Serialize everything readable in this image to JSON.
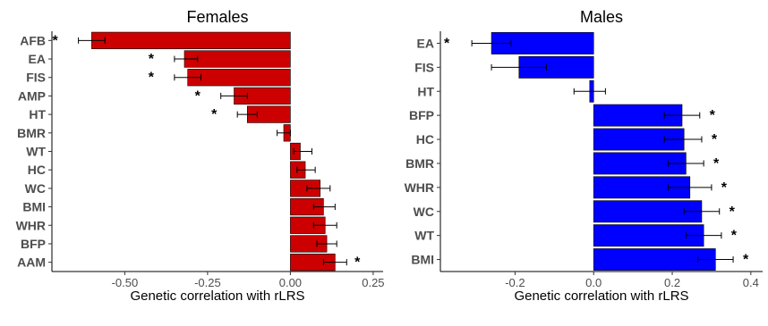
{
  "chart_data": [
    {
      "type": "bar",
      "orientation": "horizontal",
      "title": "Females",
      "xlabel": "Genetic correlation with rLRS",
      "ylabel": "",
      "color": "#cc0000",
      "xlim": [
        -0.72,
        0.28
      ],
      "xticks": [
        -0.5,
        -0.25,
        0.0,
        0.25
      ],
      "xtick_labels": [
        "-0.50",
        "-0.25",
        "0.00",
        "0.25"
      ],
      "categories": [
        "AFB",
        "EA",
        "FIS",
        "AMP",
        "HT",
        "BMR",
        "WT",
        "HC",
        "WC",
        "BMI",
        "WHR",
        "BFP",
        "AAM"
      ],
      "values": [
        -0.6,
        -0.32,
        -0.31,
        -0.17,
        -0.13,
        -0.02,
        0.03,
        0.045,
        0.09,
        0.1,
        0.105,
        0.11,
        0.135
      ],
      "err_low": [
        -0.64,
        -0.35,
        -0.35,
        -0.21,
        -0.16,
        -0.04,
        0.01,
        0.02,
        0.05,
        0.07,
        0.07,
        0.08,
        0.1
      ],
      "err_high": [
        -0.56,
        -0.28,
        -0.27,
        -0.13,
        -0.1,
        0.0,
        0.065,
        0.075,
        0.12,
        0.135,
        0.14,
        0.14,
        0.17
      ],
      "significant": [
        true,
        true,
        true,
        true,
        true,
        false,
        false,
        false,
        false,
        false,
        false,
        false,
        true
      ],
      "marker": "*"
    },
    {
      "type": "bar",
      "orientation": "horizontal",
      "title": "Males",
      "xlabel": "Genetic correlation with rLRS",
      "ylabel": "",
      "color": "#0000ff",
      "xlim": [
        -0.39,
        0.43
      ],
      "xticks": [
        -0.2,
        0.0,
        0.2,
        0.4
      ],
      "xtick_labels": [
        "-0.2",
        "0.0",
        "0.2",
        "0.4"
      ],
      "categories": [
        "EA",
        "FIS",
        "HT",
        "BFP",
        "HC",
        "BMR",
        "WHR",
        "WC",
        "WT",
        "BMI"
      ],
      "values": [
        -0.26,
        -0.19,
        -0.01,
        0.225,
        0.23,
        0.235,
        0.245,
        0.275,
        0.28,
        0.31
      ],
      "err_low": [
        -0.31,
        -0.26,
        -0.05,
        0.18,
        0.18,
        0.19,
        0.19,
        0.23,
        0.235,
        0.265
      ],
      "err_high": [
        -0.21,
        -0.12,
        0.03,
        0.27,
        0.275,
        0.28,
        0.3,
        0.32,
        0.325,
        0.355
      ],
      "significant": [
        true,
        false,
        false,
        true,
        true,
        true,
        true,
        true,
        true,
        true
      ],
      "marker": "*"
    }
  ]
}
